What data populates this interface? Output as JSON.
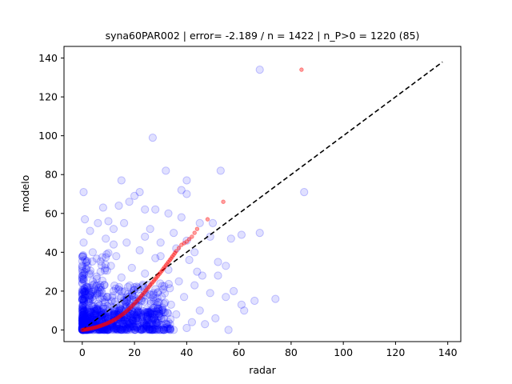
{
  "chart_data": {
    "type": "scatter",
    "title": "syna60PAR002 | error= -2.189 / n = 1422 | n_P>0 = 1220 (85)",
    "xlabel": "radar",
    "ylabel": "modelo",
    "xlim": [
      -7,
      145
    ],
    "ylim": [
      -6,
      146
    ],
    "xticks": [
      0,
      20,
      40,
      60,
      80,
      100,
      120,
      140
    ],
    "yticks": [
      0,
      20,
      40,
      60,
      80,
      100,
      120,
      140
    ],
    "grid": false,
    "colors": {
      "scatter": "#0000ff",
      "quantile": "#ff0000",
      "reference": "#000000"
    },
    "reference_line": {
      "x": [
        0,
        138
      ],
      "y": [
        0,
        138
      ],
      "style": "dashed"
    },
    "series": [
      {
        "kind": "scatter",
        "points": [
          [
            68,
            134
          ],
          [
            27,
            99
          ],
          [
            32,
            82
          ],
          [
            53,
            82
          ],
          [
            40,
            77
          ],
          [
            15,
            77
          ],
          [
            22,
            71
          ],
          [
            0.5,
            71
          ],
          [
            85,
            71
          ],
          [
            38,
            72
          ],
          [
            40,
            70
          ],
          [
            18,
            66
          ],
          [
            24,
            62
          ],
          [
            33,
            60
          ],
          [
            28,
            62
          ],
          [
            8,
            63
          ],
          [
            14,
            64
          ],
          [
            20,
            69
          ],
          [
            1,
            57
          ],
          [
            10,
            56
          ],
          [
            6,
            55
          ],
          [
            12,
            52
          ],
          [
            3,
            51
          ],
          [
            26,
            52
          ],
          [
            38,
            58
          ],
          [
            45,
            55
          ],
          [
            50,
            55
          ],
          [
            49,
            48
          ],
          [
            57,
            47
          ],
          [
            61,
            49
          ],
          [
            68,
            50
          ],
          [
            17,
            45
          ],
          [
            9,
            47
          ],
          [
            30,
            45
          ],
          [
            43,
            40
          ],
          [
            36,
            42
          ],
          [
            22,
            41
          ],
          [
            4,
            40
          ],
          [
            13,
            38
          ],
          [
            28,
            37
          ],
          [
            41,
            36
          ],
          [
            52,
            35
          ],
          [
            55,
            33
          ],
          [
            11,
            33
          ],
          [
            2,
            33
          ],
          [
            19,
            32
          ],
          [
            33,
            31
          ],
          [
            46,
            28
          ],
          [
            52,
            28
          ],
          [
            7,
            30
          ],
          [
            24,
            29
          ],
          [
            15,
            27
          ],
          [
            4,
            25
          ],
          [
            37,
            25
          ],
          [
            43,
            23
          ],
          [
            49,
            19
          ],
          [
            58,
            20
          ],
          [
            6,
            20
          ],
          [
            12,
            20
          ],
          [
            20,
            22
          ],
          [
            31,
            21
          ],
          [
            1,
            18
          ],
          [
            26,
            18
          ],
          [
            39,
            17
          ],
          [
            55,
            17
          ],
          [
            66,
            15
          ],
          [
            74,
            16
          ],
          [
            61,
            13
          ],
          [
            3,
            15
          ],
          [
            10,
            14
          ],
          [
            17,
            15
          ],
          [
            34,
            13
          ],
          [
            45,
            10
          ],
          [
            62,
            10
          ],
          [
            51,
            6
          ],
          [
            56,
            0
          ],
          [
            47,
            3
          ],
          [
            40,
            1
          ],
          [
            36,
            8
          ],
          [
            29,
            11
          ],
          [
            22,
            9
          ],
          [
            14,
            10
          ],
          [
            8,
            11
          ],
          [
            2,
            10
          ],
          [
            5,
            8
          ],
          [
            11,
            6
          ],
          [
            18,
            4
          ],
          [
            25,
            5
          ],
          [
            32,
            3
          ],
          [
            42,
            4
          ],
          [
            9,
            3
          ],
          [
            3,
            2
          ],
          [
            0,
            1
          ],
          [
            1,
            4
          ],
          [
            6,
            1
          ],
          [
            13,
            1
          ],
          [
            20,
            1
          ],
          [
            27,
            0
          ],
          [
            35,
            0
          ],
          [
            16,
            7
          ],
          [
            7,
            6
          ],
          [
            4,
            12
          ],
          [
            0.5,
            26
          ],
          [
            0.5,
            45
          ],
          [
            0.5,
            7
          ],
          [
            1,
            36
          ],
          [
            2,
            22
          ],
          [
            12,
            44
          ],
          [
            24,
            48
          ],
          [
            16,
            55
          ],
          [
            30,
            38
          ],
          [
            35,
            50
          ],
          [
            40,
            46
          ],
          [
            44,
            30
          ]
        ]
      },
      {
        "kind": "quantile",
        "points": [
          [
            0,
            0
          ],
          [
            1,
            0.2
          ],
          [
            2,
            0.4
          ],
          [
            3,
            0.7
          ],
          [
            4,
            1.0
          ],
          [
            5,
            1.3
          ],
          [
            6,
            1.7
          ],
          [
            7,
            2.1
          ],
          [
            8,
            2.6
          ],
          [
            9,
            3.1
          ],
          [
            10,
            3.7
          ],
          [
            11,
            4.3
          ],
          [
            12,
            5.0
          ],
          [
            13,
            5.8
          ],
          [
            14,
            6.7
          ],
          [
            15,
            7.6
          ],
          [
            16,
            8.6
          ],
          [
            17,
            9.7
          ],
          [
            18,
            10.9
          ],
          [
            19,
            12.2
          ],
          [
            20,
            13.6
          ],
          [
            21,
            15.0
          ],
          [
            22,
            16.5
          ],
          [
            23,
            18.1
          ],
          [
            24,
            19.7
          ],
          [
            25,
            21.3
          ],
          [
            26,
            23.0
          ],
          [
            27,
            24.6
          ],
          [
            28,
            26.2
          ],
          [
            29,
            27.9
          ],
          [
            30,
            29.6
          ],
          [
            31,
            31.4
          ],
          [
            32,
            33.2
          ],
          [
            33,
            35.0
          ],
          [
            34,
            36.8
          ],
          [
            35,
            38.7
          ],
          [
            36,
            40.6
          ],
          [
            38,
            43.8
          ],
          [
            40,
            45.5
          ],
          [
            42,
            48.0
          ],
          [
            44,
            52.0
          ],
          [
            48,
            57.0
          ],
          [
            54,
            66.0
          ],
          [
            84,
            134.0
          ]
        ]
      }
    ]
  }
}
